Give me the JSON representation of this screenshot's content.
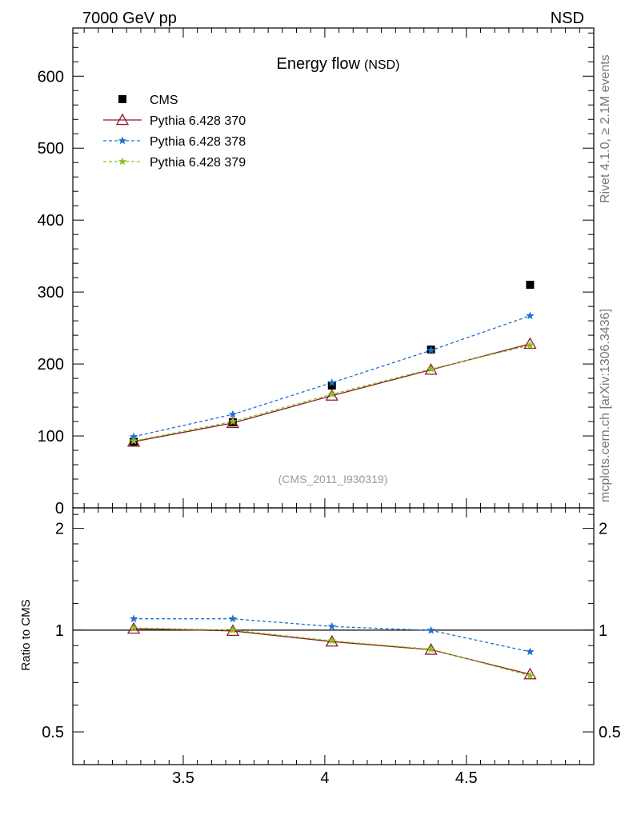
{
  "chart_data": [
    {
      "type": "scatter",
      "panel": "main",
      "header_left": "7000 GeV pp",
      "header_right": "NSD",
      "title": "Energy flow",
      "title_sub": "(NSD)",
      "analysis_tag": "(CMS_2011_I930319)",
      "side_label_top": "Rivet 4.1.0, ≥ 2.1M events",
      "side_label_bottom": "mcplots.cern.ch [arXiv:1306.3436]",
      "xlim": [
        3.11,
        4.95
      ],
      "ylim": [
        0,
        667
      ],
      "y_ticks": [
        0,
        100,
        200,
        300,
        400,
        500,
        600
      ],
      "y_tick_labels": [
        "0",
        "100",
        "200",
        "300",
        "400",
        "500",
        "600"
      ],
      "x": [
        3.325,
        3.675,
        4.025,
        4.375,
        4.725
      ],
      "series": [
        {
          "name": "CMS",
          "marker": "square",
          "color": "#000000",
          "line": "none",
          "values": [
            92,
            119,
            170,
            220,
            310
          ]
        },
        {
          "name": "Pythia 6.428 370",
          "marker": "triangle",
          "color": "#8b1a2a",
          "line": "solid",
          "values": [
            92,
            118,
            156,
            192,
            228
          ]
        },
        {
          "name": "Pythia 6.428 378",
          "marker": "star",
          "color": "#1f6fd1",
          "line": "dashed",
          "values": [
            99,
            130,
            174,
            219,
            267
          ]
        },
        {
          "name": "Pythia 6.428 379",
          "marker": "star",
          "color": "#8ac21d",
          "line": "dashed",
          "values": [
            93,
            120,
            158,
            193,
            226
          ]
        }
      ]
    },
    {
      "type": "scatter",
      "panel": "ratio",
      "ylabel": "Ratio to CMS",
      "yscale": "log",
      "ylim": [
        0.4,
        2.3
      ],
      "y_ticks": [
        0.5,
        1,
        2
      ],
      "y_tick_labels": [
        "0.5",
        "1",
        "2"
      ],
      "x_ticks": [
        3.5,
        4,
        4.5
      ],
      "x_tick_labels": [
        "3.5",
        "4",
        "4.5"
      ],
      "x": [
        3.325,
        3.675,
        4.025,
        4.375,
        4.725
      ],
      "series": [
        {
          "name": "Pythia 6.428 370",
          "marker": "triangle",
          "color": "#8b1a2a",
          "line": "solid",
          "values": [
            1.01,
            0.995,
            0.925,
            0.875,
            0.74
          ]
        },
        {
          "name": "Pythia 6.428 378",
          "marker": "star",
          "color": "#1f6fd1",
          "line": "dashed",
          "values": [
            1.08,
            1.08,
            1.025,
            0.998,
            0.863
          ]
        },
        {
          "name": "Pythia 6.428 379",
          "marker": "star",
          "color": "#8ac21d",
          "line": "dashed",
          "values": [
            1.015,
            1.0,
            0.93,
            0.878,
            0.733
          ]
        }
      ]
    }
  ]
}
